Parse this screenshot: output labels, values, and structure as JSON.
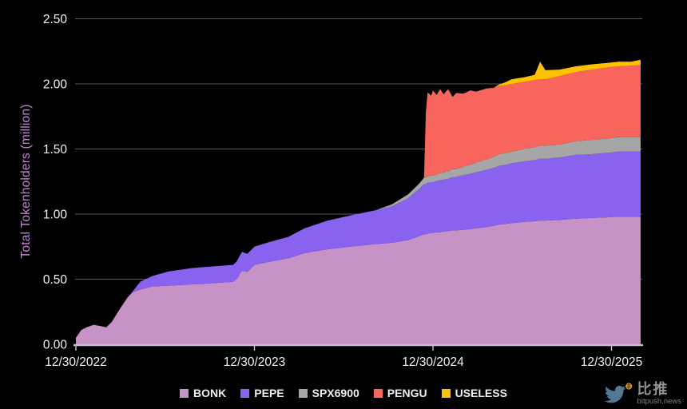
{
  "chart_data": {
    "type": "area",
    "stacked": true,
    "title": "",
    "ylabel": "Total Tokenholders (million)",
    "xlabel": "",
    "ylim": [
      0,
      2.5
    ],
    "yticks": [
      0,
      0.5,
      1.0,
      1.5,
      2.0,
      2.5
    ],
    "ytick_labels": [
      "0.00",
      "0.50",
      "1.00",
      "1.50",
      "2.00",
      "2.50"
    ],
    "xlim": [
      0,
      3.163
    ],
    "xticks": [
      0,
      1,
      2,
      3
    ],
    "xtick_labels": [
      "12/30/2022",
      "12/30/2023",
      "12/30/2024",
      "12/30/2025"
    ],
    "x_unit": "years since 12/30/2022",
    "grid": "horizontal",
    "legend_position": "bottom",
    "x": [
      0.0,
      0.03,
      0.06,
      0.1,
      0.14,
      0.17,
      0.2,
      0.25,
      0.29,
      0.32,
      0.36,
      0.43,
      0.52,
      0.65,
      0.78,
      0.88,
      0.9,
      0.93,
      0.96,
      1.0,
      1.07,
      1.19,
      1.28,
      1.41,
      1.54,
      1.68,
      1.77,
      1.86,
      1.92,
      1.95,
      1.96,
      1.97,
      1.99,
      2.0,
      2.02,
      2.04,
      2.06,
      2.085,
      2.11,
      2.13,
      2.17,
      2.21,
      2.24,
      2.3,
      2.34,
      2.37,
      2.41,
      2.44,
      2.51,
      2.57,
      2.6,
      2.63,
      2.71,
      2.8,
      2.89,
      2.97,
      3.04,
      3.11,
      3.163
    ],
    "series": [
      {
        "name": "BONK",
        "color": "#c792c6",
        "values": [
          0.05,
          0.11,
          0.13,
          0.15,
          0.14,
          0.13,
          0.17,
          0.28,
          0.36,
          0.4,
          0.42,
          0.445,
          0.45,
          0.46,
          0.47,
          0.48,
          0.5,
          0.565,
          0.555,
          0.61,
          0.63,
          0.66,
          0.7,
          0.73,
          0.75,
          0.77,
          0.78,
          0.8,
          0.83,
          0.845,
          0.845,
          0.85,
          0.855,
          0.855,
          0.86,
          0.86,
          0.865,
          0.87,
          0.875,
          0.875,
          0.88,
          0.885,
          0.89,
          0.9,
          0.91,
          0.92,
          0.925,
          0.93,
          0.94,
          0.945,
          0.95,
          0.95,
          0.955,
          0.965,
          0.97,
          0.975,
          0.98,
          0.98,
          0.98
        ]
      },
      {
        "name": "PEPE",
        "color": "#8a62f0",
        "values": [
          0,
          0,
          0,
          0,
          0,
          0,
          0,
          0,
          0,
          0.01,
          0.06,
          0.08,
          0.11,
          0.125,
          0.13,
          0.13,
          0.135,
          0.145,
          0.14,
          0.14,
          0.15,
          0.165,
          0.19,
          0.22,
          0.24,
          0.26,
          0.28,
          0.32,
          0.36,
          0.385,
          0.385,
          0.39,
          0.39,
          0.39,
          0.395,
          0.4,
          0.4,
          0.4,
          0.41,
          0.41,
          0.42,
          0.425,
          0.43,
          0.44,
          0.445,
          0.45,
          0.455,
          0.46,
          0.465,
          0.47,
          0.475,
          0.475,
          0.48,
          0.49,
          0.49,
          0.495,
          0.5,
          0.5,
          0.5
        ]
      },
      {
        "name": "SPX6900",
        "color": "#a6a6a6",
        "values": [
          0,
          0,
          0,
          0,
          0,
          0,
          0,
          0,
          0,
          0,
          0,
          0,
          0,
          0,
          0,
          0,
          0,
          0,
          0,
          0,
          0,
          0,
          0,
          0,
          0,
          0,
          0.015,
          0.03,
          0.04,
          0.05,
          0.05,
          0.05,
          0.05,
          0.05,
          0.05,
          0.055,
          0.055,
          0.06,
          0.06,
          0.06,
          0.065,
          0.07,
          0.075,
          0.08,
          0.085,
          0.09,
          0.09,
          0.09,
          0.095,
          0.1,
          0.1,
          0.1,
          0.1,
          0.105,
          0.11,
          0.11,
          0.11,
          0.11,
          0.11
        ]
      },
      {
        "name": "PENGU",
        "color": "#f8655c",
        "values": [
          0,
          0,
          0,
          0,
          0,
          0,
          0,
          0,
          0,
          0,
          0,
          0,
          0,
          0,
          0,
          0,
          0,
          0,
          0,
          0,
          0,
          0,
          0,
          0,
          0,
          0,
          0,
          0,
          0,
          0,
          0.5,
          0.645,
          0.615,
          0.655,
          0.61,
          0.645,
          0.6,
          0.63,
          0.555,
          0.585,
          0.56,
          0.57,
          0.545,
          0.545,
          0.53,
          0.525,
          0.52,
          0.52,
          0.515,
          0.515,
          0.51,
          0.51,
          0.525,
          0.53,
          0.54,
          0.545,
          0.545,
          0.55,
          0.555
        ]
      },
      {
        "name": "USELESS",
        "color": "#ffc000",
        "values": [
          0,
          0,
          0,
          0,
          0,
          0,
          0,
          0,
          0,
          0,
          0,
          0,
          0,
          0,
          0,
          0,
          0,
          0,
          0,
          0,
          0,
          0,
          0,
          0,
          0,
          0,
          0,
          0,
          0,
          0,
          0,
          0,
          0,
          0,
          0,
          0,
          0,
          0,
          0,
          0,
          0,
          0,
          0,
          0,
          0,
          0.01,
          0.025,
          0.035,
          0.035,
          0.04,
          0.135,
          0.07,
          0.05,
          0.045,
          0.04,
          0.035,
          0.035,
          0.03,
          0.04
        ]
      }
    ]
  },
  "axes_style": {
    "background": "#000000",
    "grid_color": "#595959",
    "axis_line_color": "#ccb9da",
    "tick_color": "#c9c9c9",
    "tick_label_color": "#f2f2f2",
    "ylabel_color": "#c286d2"
  },
  "watermark": {
    "brand_cn": "比推",
    "brand_domain": "bitpush.news",
    "bird_color": "#577f9e",
    "coin_color": "#dd9832"
  }
}
